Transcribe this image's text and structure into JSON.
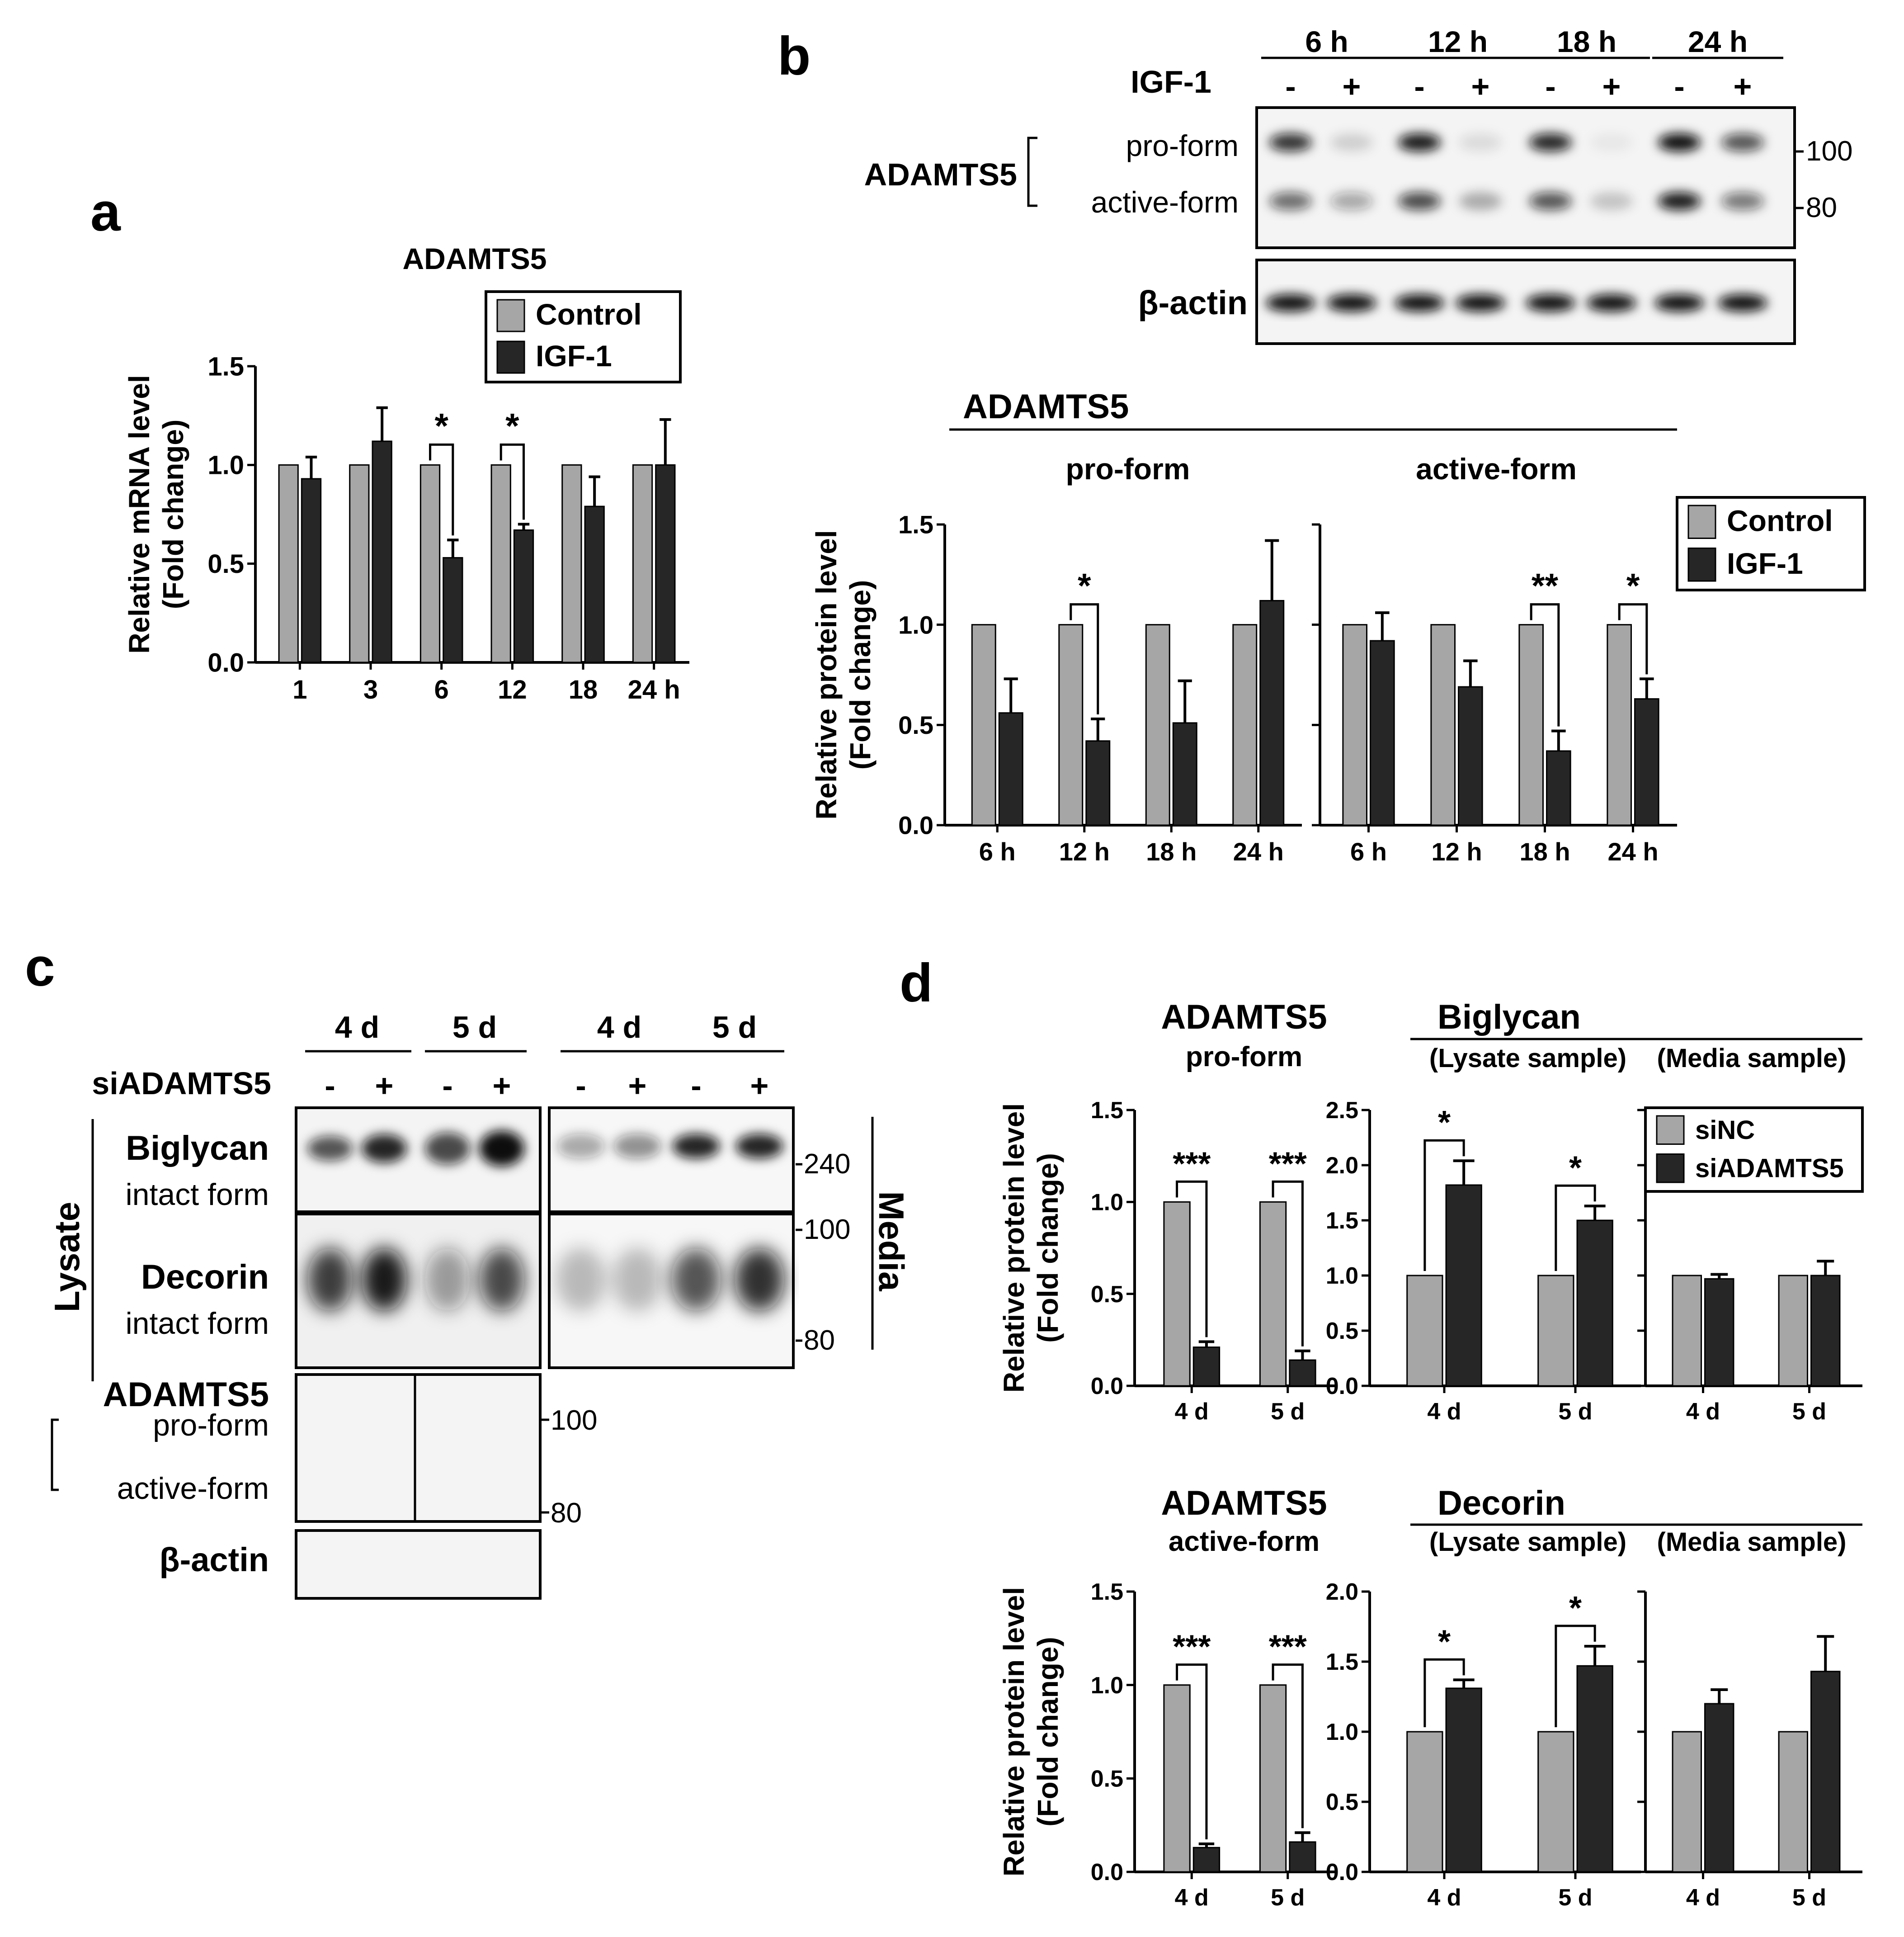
{
  "colors": {
    "control": "#a6a6a6",
    "treat": "#262626"
  },
  "panels": {
    "a": "a",
    "b": "b",
    "c": "c",
    "d": "d"
  },
  "panel_b_blot": {
    "times": [
      "6 h",
      "12 h",
      "18 h",
      "24 h"
    ],
    "treatment_label": "IGF-1",
    "signs": [
      "-",
      "+",
      "-",
      "+",
      "-",
      "+",
      "-",
      "+"
    ],
    "protein": "ADAMTS5",
    "band_pro": "pro-form",
    "band_active": "active-form",
    "loading": "β-actin",
    "mw_top": "100",
    "mw_bottom": "80"
  },
  "panel_b_chart_header": {
    "title": "ADAMTS5",
    "left": "pro-form",
    "right": "active-form"
  },
  "panel_c_blot": {
    "times": [
      "4 d",
      "5 d",
      "4 d",
      "5 d"
    ],
    "treatment_label": "siADAMTS5",
    "signs": [
      "-",
      "+",
      "-",
      "+",
      "-",
      "+",
      "-",
      "+"
    ],
    "lysate": "Lysate",
    "media": "Media",
    "biglycan": "Biglycan",
    "decorin": "Decorin",
    "intact": "intact form",
    "adamts5": "ADAMTS5",
    "pro": "pro-form",
    "active": "active-form",
    "loading": "β-actin",
    "mw_240": "240",
    "mw_100": "100",
    "mw_80": "80",
    "mw_100b": "100",
    "mw_80b": "80"
  },
  "panel_d_headers": {
    "adamts5_pro_title": "ADAMTS5",
    "adamts5_pro_sub": "pro-form",
    "adamts5_active_title": "ADAMTS5",
    "adamts5_active_sub": "active-form",
    "biglycan": "Biglycan",
    "decorin": "Decorin",
    "lysate_label": "(Lysate sample)",
    "media_label": "(Media sample)"
  },
  "chart_data": [
    {
      "id": "a",
      "type": "bar",
      "title": "ADAMTS5",
      "ylabel": [
        "Relative mRNA level",
        "(Fold change)"
      ],
      "ylim": [
        0,
        1.5
      ],
      "yticks": [
        "0.0",
        "0.5",
        "1.0",
        "1.5"
      ],
      "categories": [
        "1",
        "3",
        "6",
        "12",
        "18",
        "24 h"
      ],
      "series": [
        {
          "name": "Control",
          "values": [
            1.0,
            1.0,
            1.0,
            1.0,
            1.0,
            1.0
          ],
          "errors": [
            0,
            0,
            0,
            0,
            0,
            0
          ]
        },
        {
          "name": "IGF-1",
          "values": [
            0.93,
            1.12,
            0.53,
            0.67,
            0.79,
            1.0
          ],
          "errors": [
            0.11,
            0.17,
            0.09,
            0.03,
            0.15,
            0.23
          ]
        }
      ],
      "significance": [
        {
          "category": "6",
          "label": "*"
        },
        {
          "category": "12",
          "label": "*"
        }
      ],
      "legend": "top-right"
    },
    {
      "id": "b-pro",
      "type": "bar",
      "ylabel": [
        "Relative protein level",
        "(Fold change)"
      ],
      "ylim": [
        0,
        1.5
      ],
      "yticks": [
        "0.0",
        "0.5",
        "1.0",
        "1.5"
      ],
      "categories": [
        "6 h",
        "12 h",
        "18 h",
        "24 h"
      ],
      "series": [
        {
          "name": "Control",
          "values": [
            1.0,
            1.0,
            1.0,
            1.0
          ],
          "errors": [
            0,
            0,
            0,
            0
          ]
        },
        {
          "name": "IGF-1",
          "values": [
            0.56,
            0.42,
            0.51,
            1.12
          ],
          "errors": [
            0.17,
            0.11,
            0.21,
            0.3
          ]
        }
      ],
      "significance": [
        {
          "category": "12 h",
          "label": "*"
        }
      ]
    },
    {
      "id": "b-active",
      "type": "bar",
      "ylim": [
        0,
        1.5
      ],
      "categories": [
        "6 h",
        "12 h",
        "18 h",
        "24 h"
      ],
      "series": [
        {
          "name": "Control",
          "values": [
            1.0,
            1.0,
            1.0,
            1.0
          ],
          "errors": [
            0,
            0,
            0,
            0
          ]
        },
        {
          "name": "IGF-1",
          "values": [
            0.92,
            0.69,
            0.37,
            0.63
          ],
          "errors": [
            0.14,
            0.13,
            0.1,
            0.1
          ]
        }
      ],
      "significance": [
        {
          "category": "18 h",
          "label": "**"
        },
        {
          "category": "24 h",
          "label": "*"
        }
      ],
      "legend": "top-right"
    },
    {
      "id": "d-adamts5-pro",
      "type": "bar",
      "ylabel": [
        "Relative protein level",
        "(Fold change)"
      ],
      "ylim": [
        0,
        1.5
      ],
      "yticks": [
        "0.0",
        "0.5",
        "1.0",
        "1.5"
      ],
      "categories": [
        "4 d",
        "5 d"
      ],
      "series": [
        {
          "name": "siNC",
          "values": [
            1.0,
            1.0
          ],
          "errors": [
            0,
            0
          ]
        },
        {
          "name": "siADAMTS5",
          "values": [
            0.21,
            0.14
          ],
          "errors": [
            0.03,
            0.05
          ]
        }
      ],
      "significance": [
        {
          "category": "4 d",
          "label": "***"
        },
        {
          "category": "5 d",
          "label": "***"
        }
      ]
    },
    {
      "id": "d-biglycan-lysate",
      "type": "bar",
      "ylim": [
        0,
        2.5
      ],
      "yticks": [
        "0.0",
        "0.5",
        "1.0",
        "1.5",
        "2.0",
        "2.5"
      ],
      "categories": [
        "4 d",
        "5 d"
      ],
      "series": [
        {
          "name": "siNC",
          "values": [
            1.0,
            1.0
          ],
          "errors": [
            0,
            0
          ]
        },
        {
          "name": "siADAMTS5",
          "values": [
            1.82,
            1.5
          ],
          "errors": [
            0.22,
            0.13
          ]
        }
      ],
      "significance": [
        {
          "category": "4 d",
          "label": "*"
        },
        {
          "category": "5 d",
          "label": "*"
        }
      ],
      "legend": "top-right"
    },
    {
      "id": "d-biglycan-media",
      "type": "bar",
      "ylim": [
        0,
        2.5
      ],
      "categories": [
        "4 d",
        "5 d"
      ],
      "series": [
        {
          "name": "siNC",
          "values": [
            1.0,
            1.0
          ],
          "errors": [
            0,
            0
          ]
        },
        {
          "name": "siADAMTS5",
          "values": [
            0.97,
            1.0
          ],
          "errors": [
            0.04,
            0.13
          ]
        }
      ]
    },
    {
      "id": "d-adamts5-active",
      "type": "bar",
      "ylabel": [
        "Relative protein level",
        "(Fold change)"
      ],
      "ylim": [
        0,
        1.5
      ],
      "yticks": [
        "0.0",
        "0.5",
        "1.0",
        "1.5"
      ],
      "categories": [
        "4 d",
        "5 d"
      ],
      "series": [
        {
          "name": "siNC",
          "values": [
            1.0,
            1.0
          ],
          "errors": [
            0,
            0
          ]
        },
        {
          "name": "siADAMTS5",
          "values": [
            0.13,
            0.16
          ],
          "errors": [
            0.02,
            0.05
          ]
        }
      ],
      "significance": [
        {
          "category": "4 d",
          "label": "***"
        },
        {
          "category": "5 d",
          "label": "***"
        }
      ]
    },
    {
      "id": "d-decorin-lysate",
      "type": "bar",
      "ylim": [
        0,
        2.0
      ],
      "yticks": [
        "0.0",
        "0.5",
        "1.0",
        "1.5",
        "2.0"
      ],
      "categories": [
        "4 d",
        "5 d"
      ],
      "series": [
        {
          "name": "siNC",
          "values": [
            1.0,
            1.0
          ],
          "errors": [
            0,
            0
          ]
        },
        {
          "name": "siADAMTS5",
          "values": [
            1.31,
            1.47
          ],
          "errors": [
            0.06,
            0.14
          ]
        }
      ],
      "significance": [
        {
          "category": "4 d",
          "label": "*"
        },
        {
          "category": "5 d",
          "label": "*"
        }
      ]
    },
    {
      "id": "d-decorin-media",
      "type": "bar",
      "ylim": [
        0,
        2.0
      ],
      "categories": [
        "4 d",
        "5 d"
      ],
      "series": [
        {
          "name": "siNC",
          "values": [
            1.0,
            1.0
          ],
          "errors": [
            0,
            0
          ]
        },
        {
          "name": "siADAMTS5",
          "values": [
            1.2,
            1.43
          ],
          "errors": [
            0.1,
            0.25
          ]
        }
      ]
    }
  ]
}
